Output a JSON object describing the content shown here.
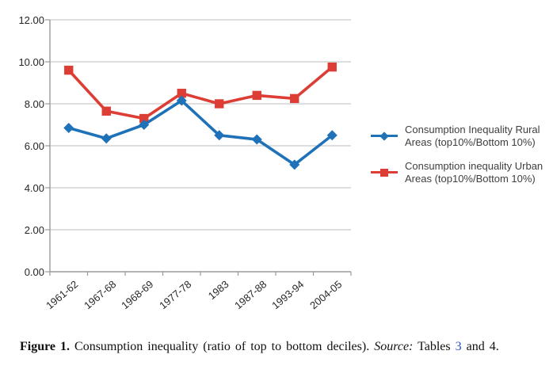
{
  "chart_data": {
    "type": "line",
    "title": "",
    "xlabel": "",
    "ylabel": "",
    "categories": [
      "1961-62",
      "1967-68",
      "1968-69",
      "1977-78",
      "1983",
      "1987-88",
      "1993-94",
      "2004-05"
    ],
    "series": [
      {
        "name": "Consumption Inequality Rural Areas  (top10%/Bottom 10%)",
        "values": [
          6.85,
          6.35,
          7.0,
          8.15,
          6.5,
          6.3,
          5.1,
          6.5
        ],
        "color": "#1F72B8",
        "marker": "diamond"
      },
      {
        "name": "Consumption inequality Urban Areas (top10%/Bottom 10%)",
        "values": [
          9.6,
          7.65,
          7.3,
          8.5,
          8.0,
          8.4,
          8.25,
          9.75
        ],
        "color": "#DC3E35",
        "marker": "square"
      }
    ],
    "ylim": [
      0,
      12
    ],
    "y_tick_step": 2,
    "y_tick_labels": [
      "0.00",
      "2.00",
      "4.00",
      "6.00",
      "8.00",
      "10.00",
      "12.00"
    ],
    "grid": "horizontal",
    "legend_position": "right",
    "gridline_color": "#C9C9C9",
    "axis_color": "#9A9A9A"
  },
  "caption": {
    "figure_label": "Figure 1.",
    "text": " Consumption inequality (ratio of top to bottom deciles). ",
    "source_label": "Source:",
    "source_prefix": " Tables ",
    "link_text": "3",
    "source_suffix": " and 4."
  }
}
